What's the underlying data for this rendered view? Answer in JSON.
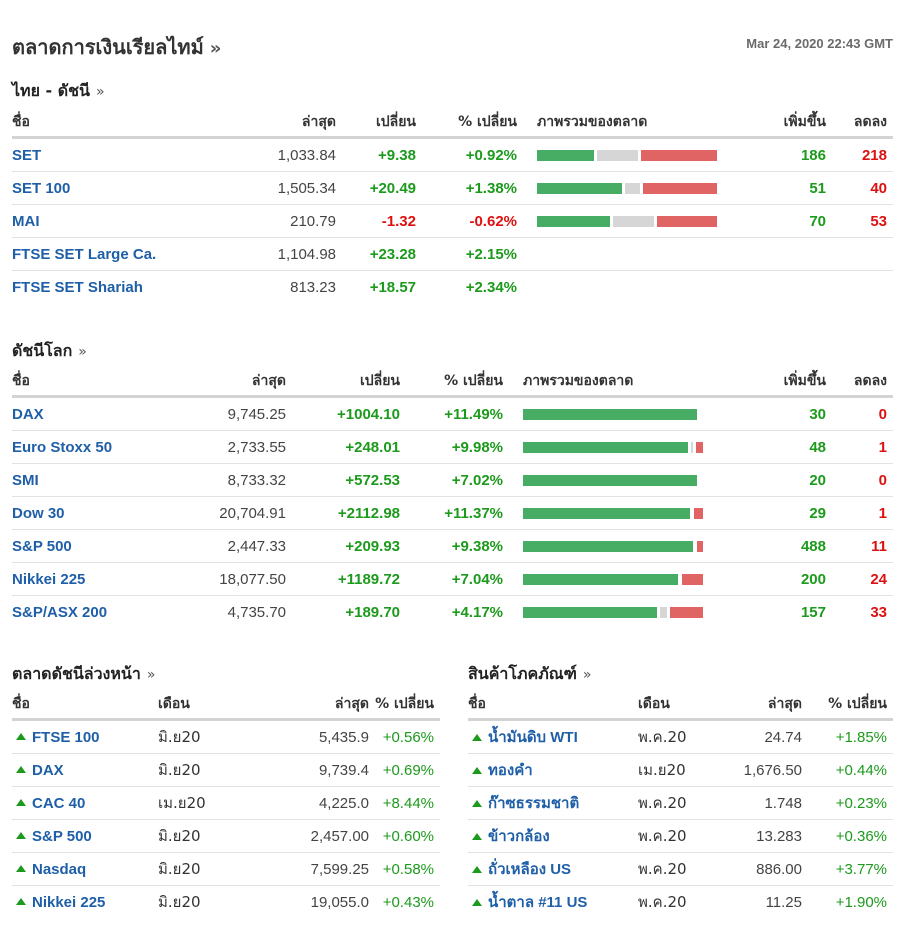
{
  "header": {
    "title": "ตลาดการเงินเรียลไทม์",
    "title_chevron": "»",
    "timestamp": "Mar 24, 2020 22:43 GMT"
  },
  "colors": {
    "up": "#1c9a1c",
    "down": "#dd1111",
    "link": "#1f5fa8",
    "bar_up": "#47ad64",
    "bar_flat": "#d6d6d6",
    "bar_down": "#e06464"
  },
  "thai": {
    "title": "ไทย - ดัชนี",
    "chevron": "»",
    "cols": {
      "name": "ชื่อ",
      "last": "ล่าสุด",
      "change": "เปลี่ยน",
      "pct": "% เปลี่ยน",
      "overview": "ภาพรวมของตลาด",
      "up": "เพิ่มขึ้น",
      "down": "ลดลง"
    },
    "rows": [
      {
        "name": "SET",
        "last": "1,033.84",
        "change": "+9.38",
        "pct": "+0.92%",
        "dir": "up",
        "adv": "186",
        "dec": "218",
        "breadth": {
          "up": 0.33,
          "flat": 0.25,
          "down": 0.42
        }
      },
      {
        "name": "SET 100",
        "last": "1,505.34",
        "change": "+20.49",
        "pct": "+1.38%",
        "dir": "up",
        "adv": "51",
        "dec": "40",
        "breadth": {
          "up": 0.49,
          "flat": 0.1,
          "down": 0.41
        }
      },
      {
        "name": "MAI",
        "last": "210.79",
        "change": "-1.32",
        "pct": "-0.62%",
        "dir": "down",
        "adv": "70",
        "dec": "53",
        "breadth": {
          "up": 0.42,
          "flat": 0.25,
          "down": 0.33
        }
      },
      {
        "name": "FTSE SET Large Ca.",
        "last": "1,104.98",
        "change": "+23.28",
        "pct": "+2.15%",
        "dir": "up",
        "adv": "",
        "dec": "",
        "breadth": null
      },
      {
        "name": "FTSE SET Shariah",
        "last": "813.23",
        "change": "+18.57",
        "pct": "+2.34%",
        "dir": "up",
        "adv": "",
        "dec": "",
        "breadth": null
      }
    ]
  },
  "world": {
    "title": "ดัชนีโลก",
    "chevron": "»",
    "cols": {
      "name": "ชื่อ",
      "last": "ล่าสุด",
      "change": "เปลี่ยน",
      "pct": "% เปลี่ยน",
      "overview": "ภาพรวมของตลาด",
      "up": "เพิ่มขึ้น",
      "down": "ลดลง"
    },
    "rows": [
      {
        "name": "DAX",
        "last": "9,745.25",
        "change": "+1004.10",
        "pct": "+11.49%",
        "dir": "up",
        "adv": "30",
        "dec": "0",
        "breadth": {
          "up": 1.0,
          "flat": 0,
          "down": 0
        }
      },
      {
        "name": "Euro Stoxx 50",
        "last": "2,733.55",
        "change": "+248.01",
        "pct": "+9.98%",
        "dir": "up",
        "adv": "48",
        "dec": "1",
        "breadth": {
          "up": 0.95,
          "flat": 0.025,
          "down": 0.025
        }
      },
      {
        "name": "SMI",
        "last": "8,733.32",
        "change": "+572.53",
        "pct": "+7.02%",
        "dir": "up",
        "adv": "20",
        "dec": "0",
        "breadth": {
          "up": 1.0,
          "flat": 0,
          "down": 0
        }
      },
      {
        "name": "Dow 30",
        "last": "20,704.91",
        "change": "+2112.98",
        "pct": "+11.37%",
        "dir": "up",
        "adv": "29",
        "dec": "1",
        "breadth": {
          "up": 0.96,
          "flat": 0.005,
          "down": 0.035
        }
      },
      {
        "name": "S&P 500",
        "last": "2,447.33",
        "change": "+209.93",
        "pct": "+9.38%",
        "dir": "up",
        "adv": "488",
        "dec": "11",
        "breadth": {
          "up": 0.975,
          "flat": 0.005,
          "down": 0.02
        }
      },
      {
        "name": "Nikkei 225",
        "last": "18,077.50",
        "change": "+1189.72",
        "pct": "+7.04%",
        "dir": "up",
        "adv": "200",
        "dec": "24",
        "breadth": {
          "up": 0.89,
          "flat": 0.005,
          "down": 0.105
        }
      },
      {
        "name": "S&P/ASX 200",
        "last": "4,735.70",
        "change": "+189.70",
        "pct": "+4.17%",
        "dir": "up",
        "adv": "157",
        "dec": "33",
        "breadth": {
          "up": 0.77,
          "flat": 0.06,
          "down": 0.17
        }
      }
    ]
  },
  "futures": {
    "title": "ตลาดดัชนีล่วงหน้า",
    "chevron": "»",
    "cols": {
      "name": "ชื่อ",
      "month": "เดือน",
      "last": "ล่าสุด",
      "pct": "% เปลี่ยน"
    },
    "rows": [
      {
        "name": "FTSE 100",
        "month": "มิ.ย20",
        "last": "5,435.9",
        "pct": "+0.56%"
      },
      {
        "name": "DAX",
        "month": "มิ.ย20",
        "last": "9,739.4",
        "pct": "+0.69%"
      },
      {
        "name": "CAC 40",
        "month": "เม.ย20",
        "last": "4,225.0",
        "pct": "+8.44%"
      },
      {
        "name": "S&P 500",
        "month": "มิ.ย20",
        "last": "2,457.00",
        "pct": "+0.60%"
      },
      {
        "name": "Nasdaq",
        "month": "มิ.ย20",
        "last": "7,599.25",
        "pct": "+0.58%"
      },
      {
        "name": "Nikkei 225",
        "month": "มิ.ย20",
        "last": "19,055.0",
        "pct": "+0.43%"
      }
    ]
  },
  "commodities": {
    "title": "สินค้าโภคภัณฑ์",
    "chevron": "»",
    "cols": {
      "name": "ชื่อ",
      "month": "เดือน",
      "last": "ล่าสุด",
      "pct": "% เปลี่ยน"
    },
    "rows": [
      {
        "name": "น้ำมันดิบ WTI",
        "month": "พ.ค.20",
        "last": "24.74",
        "pct": "+1.85%"
      },
      {
        "name": "ทองคำ",
        "month": "เม.ย20",
        "last": "1,676.50",
        "pct": "+0.44%"
      },
      {
        "name": "ก๊าซธรรมชาติ",
        "month": "พ.ค.20",
        "last": "1.748",
        "pct": "+0.23%"
      },
      {
        "name": "ข้าวกล้อง",
        "month": "พ.ค.20",
        "last": "13.283",
        "pct": "+0.36%"
      },
      {
        "name": "ถั่วเหลือง US",
        "month": "พ.ค.20",
        "last": "886.00",
        "pct": "+3.77%"
      },
      {
        "name": "น้ำตาล #11 US",
        "month": "พ.ค.20",
        "last": "11.25",
        "pct": "+1.90%"
      }
    ]
  }
}
